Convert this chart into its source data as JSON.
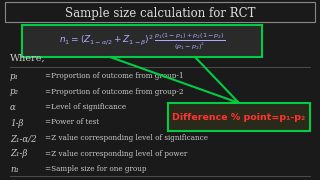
{
  "title": "Sample size calculation for RCT",
  "bg_color": "#1a1a1a",
  "title_box_color": "#888888",
  "formula_box_color": "#00cc44",
  "callout_box_color": "#00cc44",
  "arrow_color": "#00cc44",
  "formula_text_color": "#aaaaff",
  "title_text_color": "#dddddd",
  "where_text_color": "#cccccc",
  "callout_text_color": "#ff3333",
  "where_items": [
    [
      "p₁",
      "=Proportion of outcome from group-1"
    ],
    [
      "p₂",
      "=Proportion of outcome from group-2"
    ],
    [
      "α",
      "=Level of significance"
    ],
    [
      "1-β",
      "=Power of test"
    ],
    [
      "Z₁-α/2",
      "=Z value corresponding level of significance"
    ],
    [
      "Z₁-β",
      "=Z value corresponding level of power"
    ],
    [
      "n₁",
      "=Sample size for one group"
    ]
  ],
  "callout_text": "Difference % point=p₁-p₂",
  "formula": "$n_1 = (Z_{1-\\alpha/2} + Z_{1-\\beta})^2 \\dfrac{p_1(1-p_1)+p_2(1-p_2)}{(p_1-p_2)^2}$"
}
